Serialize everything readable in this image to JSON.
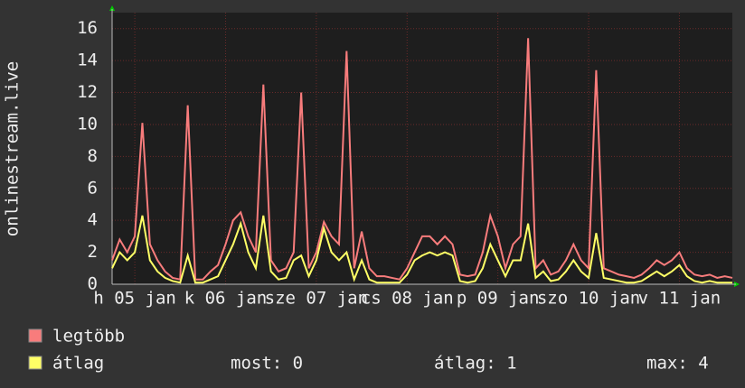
{
  "chart_data": {
    "type": "line",
    "y_label": "onlinestream.live",
    "x": [
      0,
      2,
      4,
      6,
      8,
      10,
      12,
      14,
      16,
      18,
      20,
      22,
      24,
      26,
      28,
      30,
      32,
      34,
      36,
      38,
      40,
      42,
      44,
      46,
      48,
      50,
      52,
      54,
      56,
      58,
      60,
      62,
      64,
      66,
      68,
      70,
      72,
      74,
      76,
      78,
      80,
      82,
      84,
      86,
      88,
      90,
      92,
      94,
      96,
      98,
      100,
      102,
      104,
      106,
      108,
      110,
      112,
      114,
      116,
      118,
      120,
      122,
      124,
      126,
      128,
      130,
      132,
      134,
      136,
      138,
      140,
      142,
      144,
      146,
      148,
      150,
      152,
      154,
      156,
      158,
      160,
      162,
      164
    ],
    "xlim": [
      0,
      164
    ],
    "xticks": [
      {
        "value": 6,
        "label": "h 05 jan"
      },
      {
        "value": 30,
        "label": "k 06 jan"
      },
      {
        "value": 54,
        "label": "sze 07 jan"
      },
      {
        "value": 78,
        "label": "cs 08 jan"
      },
      {
        "value": 102,
        "label": "p 09 jan"
      },
      {
        "value": 126,
        "label": "szo 10 jan"
      },
      {
        "value": 150,
        "label": "v 11 jan"
      }
    ],
    "ylim": [
      0,
      17
    ],
    "yticks": [
      0,
      2,
      4,
      6,
      8,
      10,
      12,
      14,
      16
    ],
    "grid": true,
    "series": [
      {
        "name": "legtöbb",
        "color": "#f87c7c",
        "values": [
          1.5,
          2.8,
          2,
          3,
          10.1,
          2.5,
          1.5,
          0.8,
          0.4,
          0.3,
          11.2,
          0.3,
          0.3,
          0.8,
          1.2,
          2.5,
          4,
          4.5,
          3,
          2,
          12.5,
          1.5,
          0.8,
          1,
          2,
          12,
          1,
          2,
          3.9,
          3,
          2.5,
          14.6,
          1,
          3.3,
          1,
          0.5,
          0.5,
          0.4,
          0.3,
          1,
          2,
          3,
          3,
          2.5,
          3,
          2.5,
          0.6,
          0.5,
          0.6,
          2,
          4.3,
          3,
          1,
          2.5,
          3,
          15.4,
          1,
          1.5,
          0.6,
          0.8,
          1.5,
          2.5,
          1.5,
          1,
          13.4,
          1,
          0.8,
          0.6,
          0.5,
          0.4,
          0.6,
          1,
          1.5,
          1.2,
          1.5,
          2,
          1,
          0.6,
          0.5,
          0.6,
          0.4,
          0.5,
          0.4
        ]
      },
      {
        "name": "átlag",
        "color": "#ffff66",
        "values": [
          1,
          2,
          1.5,
          2,
          4.3,
          1.5,
          0.8,
          0.4,
          0.2,
          0.1,
          1.8,
          0.1,
          0.1,
          0.3,
          0.5,
          1.5,
          2.5,
          3.8,
          2,
          1,
          4.3,
          0.8,
          0.3,
          0.4,
          1.5,
          1.8,
          0.5,
          1.5,
          3.5,
          2,
          1.5,
          2,
          0.3,
          1.5,
          0.3,
          0.1,
          0.1,
          0.1,
          0.1,
          0.6,
          1.5,
          1.8,
          2,
          1.8,
          2,
          1.8,
          0.2,
          0.1,
          0.2,
          1,
          2.5,
          1.5,
          0.5,
          1.5,
          1.5,
          3.8,
          0.4,
          0.8,
          0.2,
          0.3,
          0.8,
          1.5,
          0.8,
          0.4,
          3.2,
          0.4,
          0.3,
          0.2,
          0.1,
          0.1,
          0.2,
          0.5,
          0.8,
          0.5,
          0.8,
          1.2,
          0.5,
          0.2,
          0.1,
          0.2,
          0.1,
          0.1,
          0.1
        ]
      }
    ],
    "stats": [
      "most: 0",
      "átlag: 1",
      "max: 4"
    ]
  }
}
